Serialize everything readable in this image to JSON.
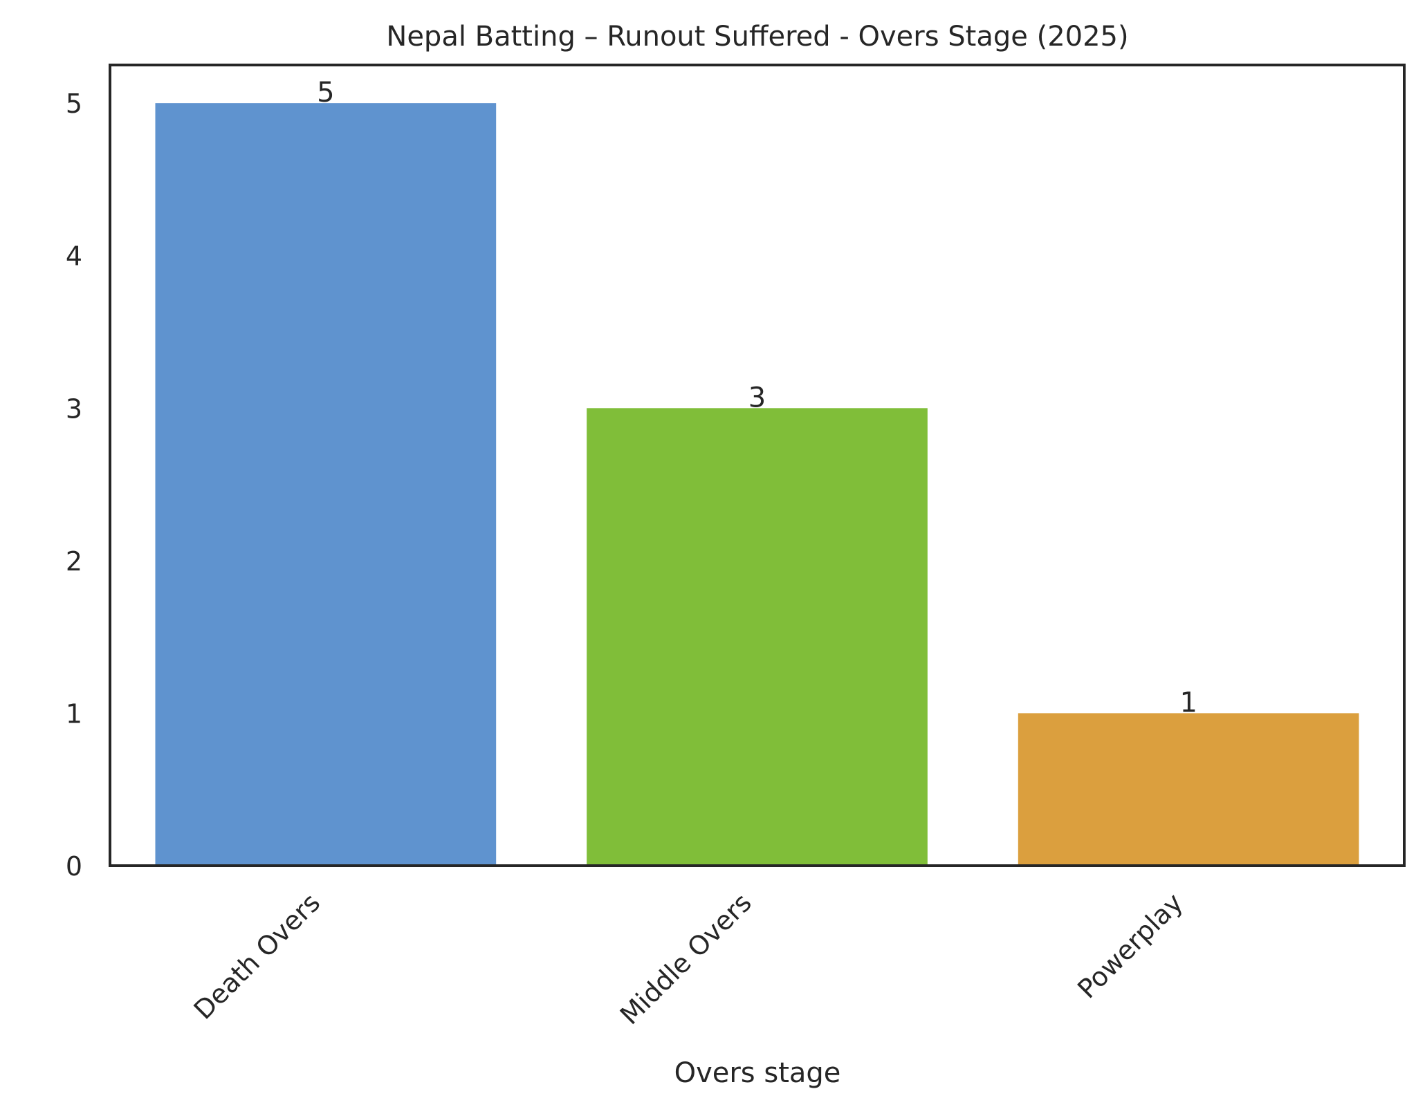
{
  "chart_data": {
    "type": "bar",
    "title": "Nepal Batting – Runout Suffered - Overs Stage (2025)",
    "xlabel": "Overs stage",
    "ylabel": "",
    "categories": [
      "Death Overs",
      "Middle Overs",
      "Powerplay"
    ],
    "values": [
      5,
      3,
      1
    ],
    "data_labels": [
      "5",
      "3",
      "1"
    ],
    "colors": [
      "#5f93cf",
      "#80be39",
      "#db9f3e"
    ],
    "ylim": [
      0,
      5.25
    ],
    "yticks": [
      "0",
      "1",
      "2",
      "3",
      "4",
      "5"
    ],
    "grid": false,
    "legend": "none"
  }
}
